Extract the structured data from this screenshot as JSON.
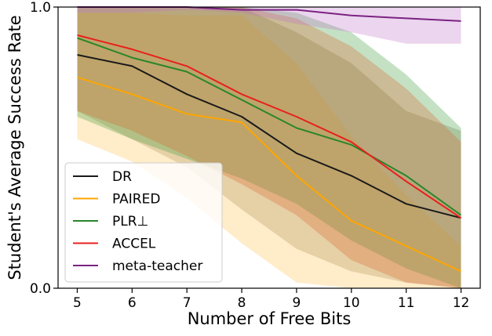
{
  "chart_data": {
    "type": "line",
    "title": "",
    "xlabel": "Number of Free Bits",
    "ylabel": "Student's Average Success Rate",
    "x": [
      5,
      6,
      7,
      8,
      9,
      10,
      11,
      12
    ],
    "xlim": [
      4.65,
      12.35
    ],
    "ylim": [
      0.0,
      1.0
    ],
    "xticks": [
      "5",
      "6",
      "7",
      "8",
      "9",
      "10",
      "11",
      "12"
    ],
    "yticks": [
      {
        "value": 0.0,
        "label": "0.0"
      },
      {
        "value": 1.0,
        "label": "1.0"
      }
    ],
    "grid": false,
    "legend_position": "lower-left",
    "series": [
      {
        "name": "DR",
        "color": "#1a1a1a",
        "band_color": "#8b7a5a",
        "values": [
          0.83,
          0.79,
          0.69,
          0.61,
          0.48,
          0.4,
          0.3,
          0.25
        ],
        "lower": [
          0.63,
          0.53,
          0.43,
          0.28,
          0.14,
          0.06,
          0.02,
          0.0
        ],
        "upper": [
          1.0,
          1.0,
          1.0,
          1.0,
          0.91,
          0.8,
          0.63,
          0.56
        ]
      },
      {
        "name": "PAIRED",
        "color": "#ffa500",
        "band_color": "#ffc04d",
        "values": [
          0.75,
          0.69,
          0.62,
          0.59,
          0.4,
          0.24,
          0.15,
          0.06
        ],
        "lower": [
          0.53,
          0.45,
          0.32,
          0.16,
          0.02,
          0.0,
          0.0,
          0.0
        ],
        "upper": [
          0.98,
          0.98,
          0.97,
          0.97,
          0.8,
          0.54,
          0.33,
          0.15
        ]
      },
      {
        "name": "PLR⊥",
        "color": "#2a862a",
        "band_color": "#3a9a3a",
        "values": [
          0.89,
          0.82,
          0.77,
          0.67,
          0.57,
          0.51,
          0.4,
          0.26
        ],
        "lower": [
          0.61,
          0.53,
          0.46,
          0.39,
          0.3,
          0.17,
          0.07,
          0.0
        ],
        "upper": [
          1.0,
          1.0,
          1.0,
          1.0,
          0.98,
          0.91,
          0.76,
          0.57
        ]
      },
      {
        "name": "ACCEL",
        "color": "#e8201c",
        "band_color": "#d9632a",
        "values": [
          0.9,
          0.85,
          0.79,
          0.69,
          0.61,
          0.52,
          0.38,
          0.25
        ],
        "lower": [
          0.63,
          0.56,
          0.47,
          0.37,
          0.26,
          0.1,
          0.02,
          0.0
        ],
        "upper": [
          1.0,
          1.0,
          1.0,
          1.0,
          0.96,
          0.86,
          0.71,
          0.52
        ]
      },
      {
        "name": "meta-teacher",
        "color": "#7b2283",
        "band_color": "#c074c8",
        "values": [
          1.0,
          1.0,
          1.0,
          0.99,
          0.99,
          0.97,
          0.96,
          0.95
        ],
        "lower": [
          0.98,
          0.98,
          0.99,
          0.98,
          0.94,
          0.91,
          0.87,
          0.87
        ],
        "upper": [
          1.0,
          1.0,
          1.0,
          1.0,
          1.0,
          1.0,
          1.0,
          1.0
        ]
      }
    ]
  }
}
